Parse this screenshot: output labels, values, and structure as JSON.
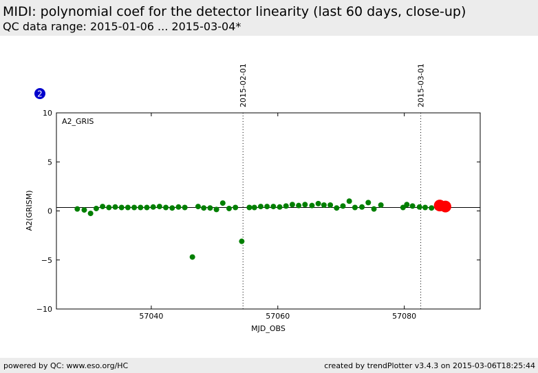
{
  "header": {
    "title": "MIDI: polynomial coef for the detector linearity (last 60 days, close-up)",
    "subtitle": "QC data range: 2015-01-06 ... 2015-03-04*"
  },
  "footer": {
    "left": "powered by QC: www.eso.org/HC",
    "right": "created by trendPlotter v3.4.3 on 2015-03-06T18:25:44"
  },
  "badge": {
    "label": "2",
    "color": "#0000cc"
  },
  "chart_data": {
    "type": "scatter",
    "panel_label": "A2_GRIS",
    "xlabel": "MJD_OBS",
    "ylabel": "A2(GRISM)",
    "xlim": [
      57025,
      57092
    ],
    "ylim": [
      -10,
      10
    ],
    "xticks": [
      57040,
      57060,
      57080
    ],
    "yticks": [
      10,
      5,
      0,
      -5,
      -10
    ],
    "ytick_labels": [
      "10",
      "5",
      "0",
      "−5",
      "−10"
    ],
    "grid": false,
    "reference_line_y": 0.35,
    "date_markers": [
      {
        "x": 57054.5,
        "label": "2015-02-01"
      },
      {
        "x": 57082.6,
        "label": "2015-03-01"
      }
    ],
    "series": [
      {
        "color": "#007f00",
        "x": [
          57028.3,
          57029.4,
          57030.4,
          57031.3,
          57032.3,
          57033.3,
          57034.3,
          57035.3,
          57036.3,
          57037.3,
          57038.3,
          57039.3,
          57040.3,
          57041.3,
          57042.3,
          57043.3,
          57044.3,
          57045.3,
          57046.5,
          57047.4,
          57048.3,
          57049.3,
          57050.3,
          57051.3,
          57052.3,
          57053.3,
          57054.3,
          57055.5,
          57056.3,
          57057.3,
          57058.3,
          57059.3,
          57060.3,
          57061.3,
          57062.3,
          57063.3,
          57064.3,
          57065.4,
          57066.4,
          57067.3,
          57068.3,
          57069.3,
          57070.3,
          57071.3,
          57072.2,
          57073.3,
          57074.3,
          57075.2,
          57076.3,
          57079.8,
          57080.4,
          57081.3,
          57082.4,
          57083.3,
          57084.3,
          57085.2,
          57085.9,
          57086.4
        ],
        "y": [
          0.2,
          0.1,
          -0.25,
          0.25,
          0.45,
          0.35,
          0.4,
          0.35,
          0.35,
          0.35,
          0.35,
          0.35,
          0.4,
          0.45,
          0.35,
          0.3,
          0.4,
          0.35,
          -4.7,
          0.45,
          0.3,
          0.3,
          0.15,
          0.8,
          0.25,
          0.35,
          -3.1,
          0.35,
          0.35,
          0.45,
          0.45,
          0.45,
          0.4,
          0.5,
          0.65,
          0.55,
          0.65,
          0.55,
          0.75,
          0.6,
          0.6,
          0.3,
          0.5,
          1.0,
          0.35,
          0.4,
          0.85,
          0.2,
          0.6,
          0.35,
          0.65,
          0.5,
          0.4,
          0.35,
          0.3,
          0.35,
          0.5,
          0.4
        ]
      },
      {
        "color": "#ff0000",
        "x": [
          57085.6,
          57086.5
        ],
        "y": [
          0.55,
          0.45
        ]
      }
    ]
  }
}
